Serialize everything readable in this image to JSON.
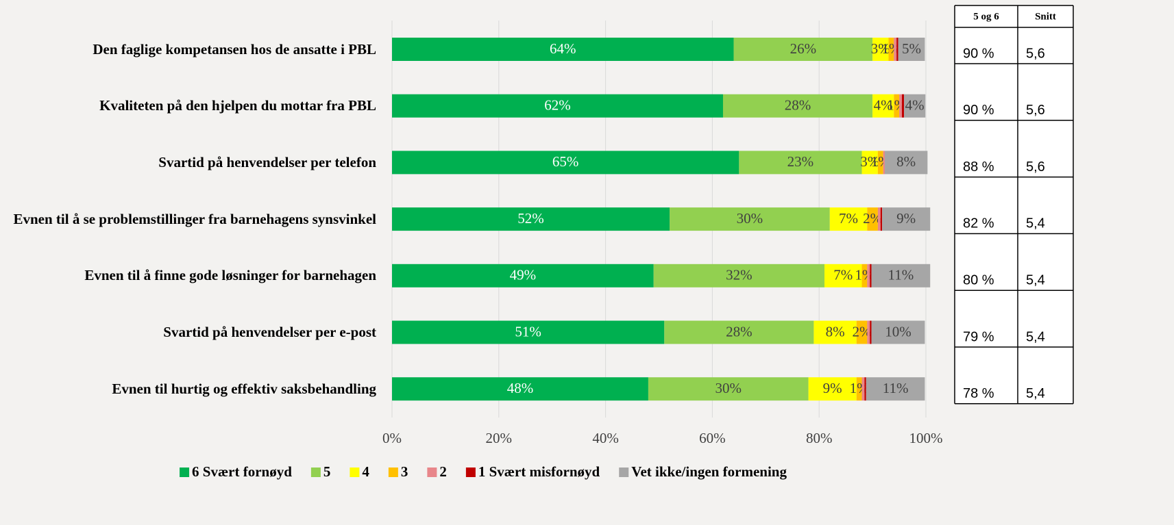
{
  "chart_data": {
    "type": "stacked-barh",
    "categories": [
      "Den faglige kompetansen hos de ansatte i PBL",
      "Kvaliteten på den hjelpen du mottar fra PBL",
      "Svartid på henvendelser per telefon",
      "Evnen til å se problemstillinger fra barnehagens synsvinkel",
      "Evnen til å finne gode løsninger for barnehagen",
      "Svartid på henvendelser per e-post",
      "Evnen til hurtig og effektiv saksbehandling"
    ],
    "series": [
      {
        "name": "6 Svært fornøyd",
        "color": "#00b050",
        "values": [
          64,
          62,
          65,
          52,
          49,
          51,
          48
        ],
        "value_labels": [
          "64%",
          "62%",
          "65%",
          "52%",
          "49%",
          "51%",
          "48%"
        ]
      },
      {
        "name": "5",
        "color": "#92d050",
        "values": [
          26,
          28,
          23,
          30,
          32,
          28,
          30
        ],
        "value_labels": [
          "26%",
          "28%",
          "23%",
          "30%",
          "32%",
          "28%",
          "30%"
        ]
      },
      {
        "name": "4",
        "color": "#ffff00",
        "values": [
          3,
          4,
          3,
          7,
          7,
          8,
          9
        ],
        "value_labels": [
          "3%",
          "4%",
          "3%",
          "7%",
          "7%",
          "8%",
          "9%"
        ]
      },
      {
        "name": "3",
        "color": "#ffc000",
        "values": [
          1,
          1,
          1,
          2,
          1,
          2,
          1
        ],
        "value_labels": [
          "1%",
          "1%",
          "1%",
          "2%",
          "1%",
          "2%",
          "1%"
        ]
      },
      {
        "name": "2",
        "color": "#e8868a",
        "values": [
          0.5,
          0.5,
          0.3,
          0.5,
          0.5,
          0.5,
          0.5
        ],
        "value_labels": [
          null,
          null,
          null,
          null,
          null,
          null,
          null
        ]
      },
      {
        "name": "1 Svært misfornøyd",
        "color": "#c00000",
        "values": [
          0.3,
          0.4,
          0,
          0.3,
          0.3,
          0.3,
          0.3
        ],
        "value_labels": [
          null,
          null,
          null,
          null,
          null,
          null,
          null
        ]
      },
      {
        "name": "Vet ikke/ingen formening",
        "color": "#a6a6a6",
        "values": [
          5,
          4,
          8,
          9,
          11,
          10,
          11
        ],
        "value_labels": [
          "5%",
          "4%",
          "8%",
          "9%",
          "11%",
          "10%",
          "11%"
        ]
      }
    ],
    "xlim": [
      0,
      100
    ],
    "xticks": [
      {
        "value": 0,
        "label": "0%"
      },
      {
        "value": 20,
        "label": "20%"
      },
      {
        "value": 40,
        "label": "40%"
      },
      {
        "value": 60,
        "label": "60%"
      },
      {
        "value": 80,
        "label": "80%"
      },
      {
        "value": 100,
        "label": "100%"
      }
    ],
    "grid": true,
    "legend": "bottom"
  },
  "table": {
    "headers": [
      "5 og 6",
      "Snitt"
    ],
    "rows": [
      [
        "90 %",
        "5,6"
      ],
      [
        "90 %",
        "5,6"
      ],
      [
        "88 %",
        "5,6"
      ],
      [
        "82 %",
        "5,4"
      ],
      [
        "80 %",
        "5,4"
      ],
      [
        "79 %",
        "5,4"
      ],
      [
        "78 %",
        "5,4"
      ]
    ]
  }
}
